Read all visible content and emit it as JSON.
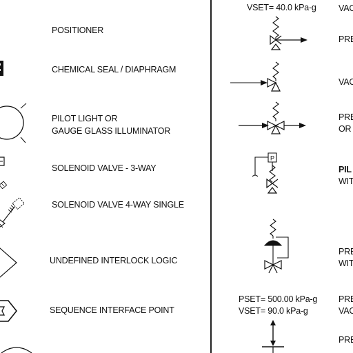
{
  "left_column": [
    {
      "label": "POSITIONER",
      "icon": "positioner-icon"
    },
    {
      "label": "CHEMICAL SEAL / DIAPHRAGM",
      "icon": "chemical-seal-icon"
    },
    {
      "label_lines": [
        "PILOT LIGHT OR",
        "GAUGE GLASS ILLUMINATOR"
      ],
      "icon": "pilot-light-icon"
    },
    {
      "label": "SOLENOID VALVE - 3-WAY",
      "icon": "solenoid-3way-icon"
    },
    {
      "label": "SOLENOID VALVE 4-WAY SINGLE",
      "icon": "solenoid-4way-icon"
    },
    {
      "label": "UNDEFINED INTERLOCK LOGIC",
      "icon": "interlock-logic-icon"
    },
    {
      "label": "SEQUENCE INTERFACE POINT",
      "icon": "sequence-interface-icon"
    }
  ],
  "right_column": [
    {
      "setpoint_lines": [
        "VSET= 40.0 kPa-g"
      ],
      "label_lines": [
        "VAC"
      ],
      "icon": "vacuum-valve-top-icon"
    },
    {
      "label_lines": [
        "PRE"
      ],
      "icon": "pressure-relief-valve-icon"
    },
    {
      "label_lines": [
        "VAC"
      ],
      "icon": "vacuum-relief-valve-icon"
    },
    {
      "label_lines": [
        "PRE",
        "OR"
      ],
      "icon": "pressure-vacuum-valve-icon"
    },
    {
      "label_lines": [
        "PIL",
        "WIT"
      ],
      "icon": "pilot-operated-valve-icon"
    },
    {
      "label_lines": [
        "PRE",
        "WIT"
      ],
      "icon": "diaphragm-valve-icon"
    },
    {
      "setpoint_lines": [
        "PSET= 500.00 kPa-g",
        "VSET= 90.0 kPa-g"
      ],
      "label_lines": [
        "PRE",
        "VAC"
      ],
      "icon": "pressure-vacuum-setpoint-icon"
    },
    {
      "label_lines": [
        "PRE"
      ],
      "icon": "bottom-valve-icon"
    }
  ],
  "colors": {
    "ink": "#111111",
    "background": "#ffffff"
  }
}
